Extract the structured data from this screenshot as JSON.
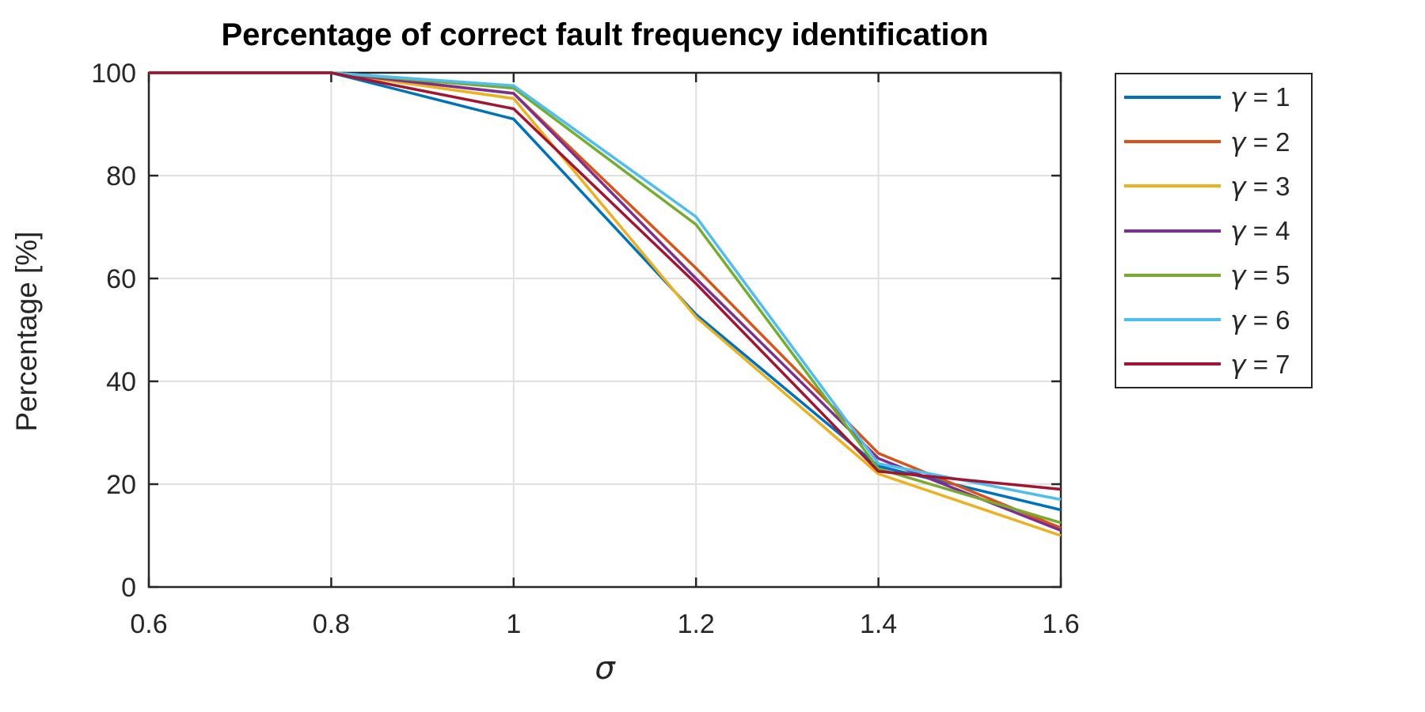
{
  "chart_data": {
    "type": "line",
    "title": "Percentage of correct fault frequency identification",
    "xlabel": "σ",
    "ylabel": "Percentage [%]",
    "x": [
      0.6,
      0.8,
      1.0,
      1.2,
      1.4,
      1.6
    ],
    "xlim": [
      0.6,
      1.6
    ],
    "ylim": [
      0,
      100
    ],
    "xticks": [
      0.6,
      0.8,
      1.0,
      1.2,
      1.4,
      1.6
    ],
    "xtick_labels": [
      "0.6",
      "0.8",
      "1",
      "1.2",
      "1.4",
      "1.6"
    ],
    "yticks": [
      0,
      20,
      40,
      60,
      80,
      100
    ],
    "ytick_labels": [
      "0",
      "20",
      "40",
      "60",
      "80",
      "100"
    ],
    "grid": true,
    "legend_position": "outside-right",
    "axis_color": "#262626",
    "grid_color": "#E0E0E0",
    "series": [
      {
        "name": "γ = 1",
        "color": "#0072BD",
        "values": [
          100,
          100,
          91,
          53,
          23.5,
          15
        ]
      },
      {
        "name": "γ = 2",
        "color": "#D95319",
        "values": [
          100,
          100,
          96,
          62,
          26,
          11.5
        ]
      },
      {
        "name": "γ = 3",
        "color": "#EDB120",
        "values": [
          100,
          100,
          95,
          52.5,
          22,
          10
        ]
      },
      {
        "name": "γ = 4",
        "color": "#7E2F8E",
        "values": [
          100,
          100,
          96,
          60,
          25,
          11
        ]
      },
      {
        "name": "γ = 5",
        "color": "#77AC30",
        "values": [
          100,
          100,
          97,
          70.5,
          23,
          12.5
        ]
      },
      {
        "name": "γ = 6",
        "color": "#4DBEEE",
        "values": [
          100,
          100,
          97.5,
          72,
          24,
          17
        ]
      },
      {
        "name": "γ = 7",
        "color": "#A2142F",
        "values": [
          100,
          100,
          93,
          59,
          22.5,
          19
        ]
      }
    ]
  }
}
